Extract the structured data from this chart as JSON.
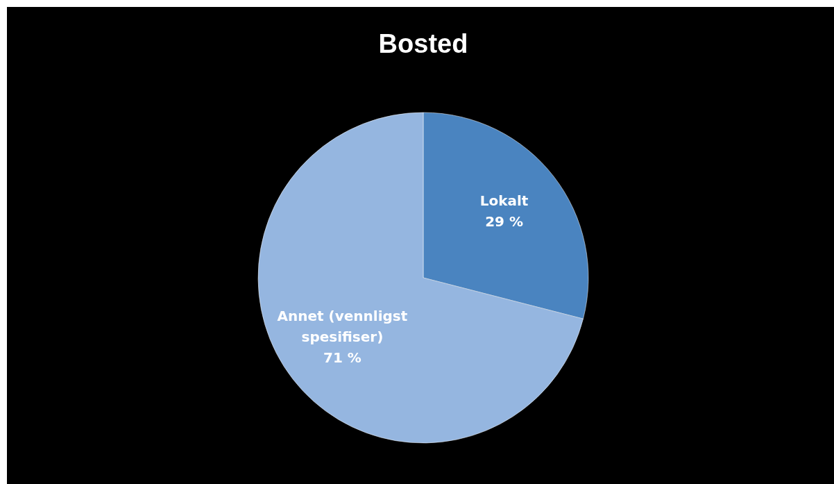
{
  "chart_data": {
    "type": "pie",
    "title": "Bosted",
    "categories": [
      "Lokalt",
      "Annet (vennligst spesifiser)"
    ],
    "values": [
      29,
      71
    ],
    "colors": [
      "#4a84c0",
      "#95b6e0"
    ],
    "value_labels": [
      "29 %",
      "71 %"
    ]
  }
}
